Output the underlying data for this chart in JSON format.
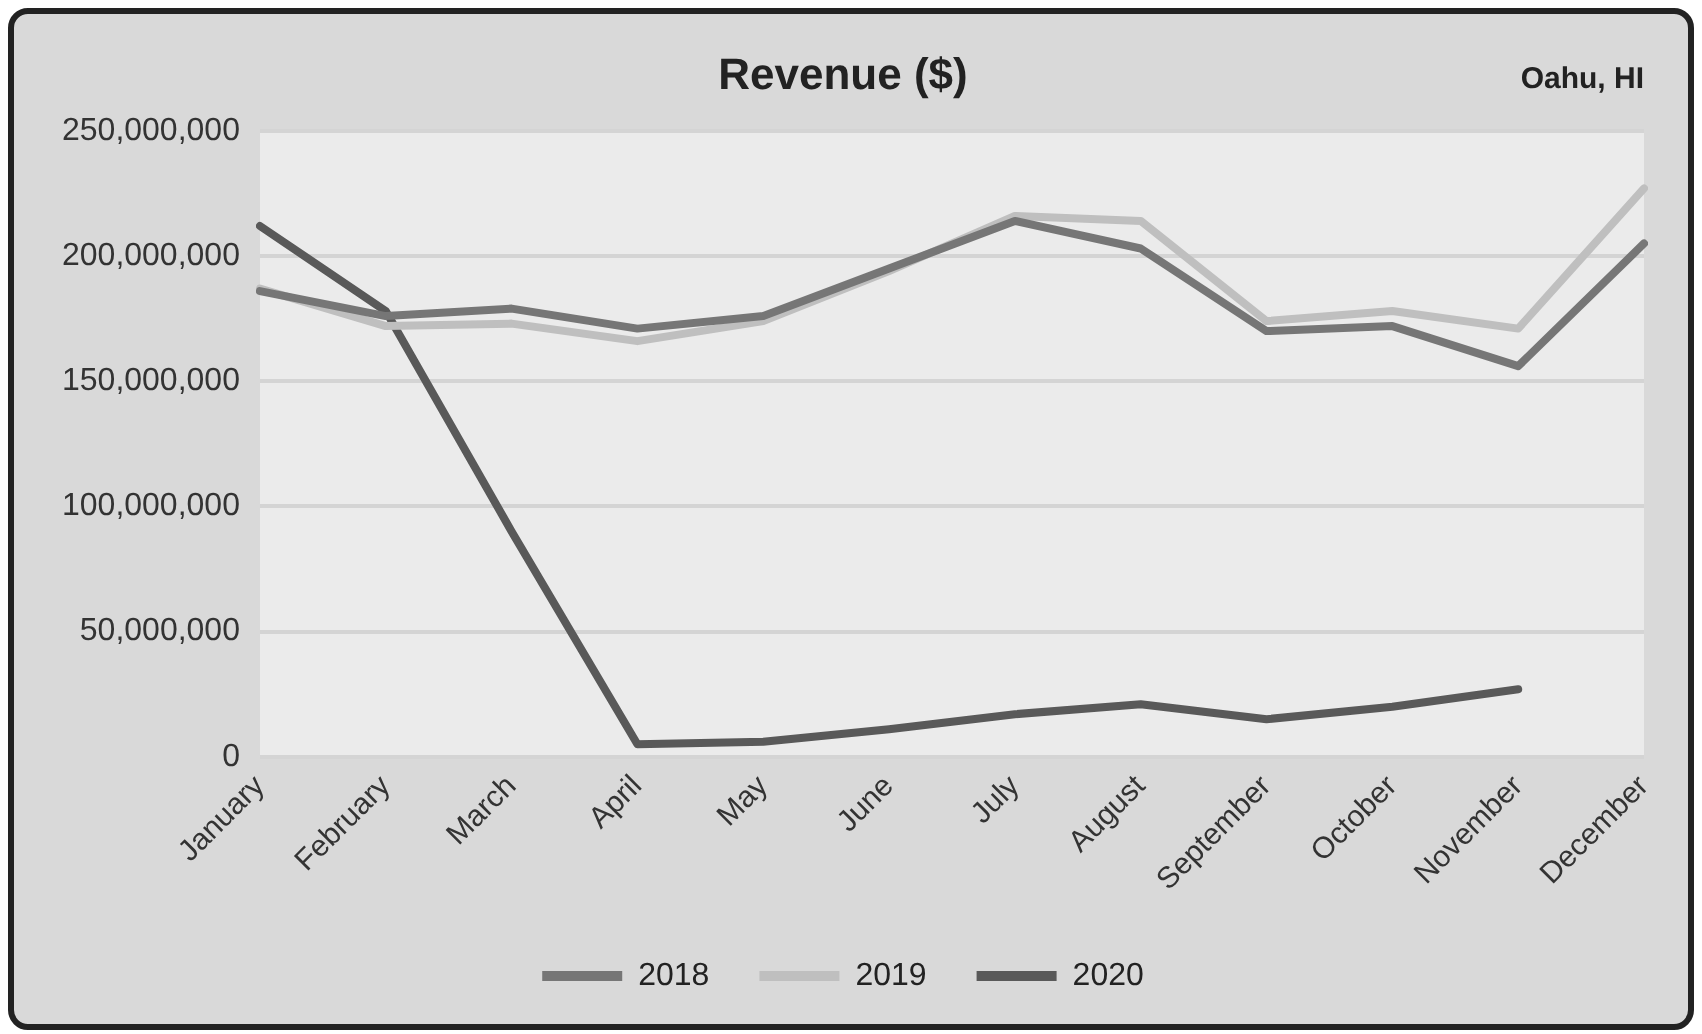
{
  "chart_data": {
    "type": "line",
    "title": "Revenue ($)",
    "annotations": [
      "Oahu, HI"
    ],
    "categories": [
      "January",
      "February",
      "March",
      "April",
      "May",
      "June",
      "July",
      "August",
      "September",
      "October",
      "November",
      "December"
    ],
    "series": [
      {
        "name": "2018",
        "color": "#767676",
        "values": [
          186000000,
          176000000,
          179000000,
          171000000,
          176000000,
          195000000,
          214000000,
          203000000,
          170000000,
          172000000,
          156000000,
          205000000
        ]
      },
      {
        "name": "2019",
        "color": "#bfbfbf",
        "values": [
          187000000,
          172000000,
          173000000,
          166000000,
          174000000,
          194000000,
          216000000,
          214000000,
          174000000,
          178000000,
          171000000,
          227000000
        ]
      },
      {
        "name": "2020",
        "color": "#595959",
        "values": [
          212000000,
          178000000,
          90000000,
          5000000,
          6000000,
          11000000,
          17000000,
          21000000,
          15000000,
          20000000,
          27000000,
          null
        ]
      }
    ],
    "ylim": [
      0,
      250000000
    ],
    "yticks": [
      0,
      {
        "value": 50000000,
        "label": "50,000,000"
      },
      {
        "value": 100000000,
        "label": "100,000,000"
      },
      {
        "value": 150000000,
        "label": "150,000,000"
      },
      {
        "value": 200000000,
        "label": "200,000,000"
      },
      {
        "value": 250000000,
        "label": "250,000,000"
      }
    ],
    "grid": "y",
    "legend": "bottom",
    "marker": "none",
    "line_style": "solid"
  }
}
